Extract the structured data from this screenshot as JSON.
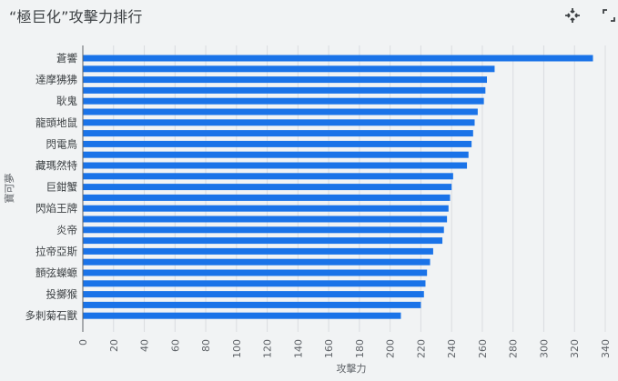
{
  "chart_data": {
    "type": "bar",
    "orientation": "horizontal",
    "title": "“極巨化”攻擊力排行",
    "xlabel": "攻擊力",
    "ylabel": "寶可夢",
    "xlim": [
      0,
      340
    ],
    "xticks": [
      0,
      20,
      40,
      60,
      80,
      100,
      120,
      140,
      160,
      180,
      200,
      220,
      240,
      260,
      280,
      300,
      320,
      340
    ],
    "grid": true,
    "bar_color": "#1a73e8",
    "labels": [
      "蒼響",
      "",
      "達摩狒狒",
      "",
      "耿鬼",
      "",
      "龍頭地鼠",
      "",
      "閃電鳥",
      "",
      "藏瑪然特",
      "",
      "巨鉗蟹",
      "",
      "閃焰王牌",
      "",
      "炎帝",
      "",
      "拉帝亞斯",
      "",
      "顫弦蠑螈",
      "",
      "投擲猴",
      "",
      "多刺菊石獸"
    ],
    "values": [
      332,
      268,
      263,
      262,
      261,
      257,
      255,
      254,
      253,
      251,
      250,
      241,
      240,
      239,
      238,
      237,
      235,
      234,
      228,
      226,
      224,
      223,
      222,
      220,
      207
    ]
  },
  "icons": {
    "collapse": "collapse-arrows-icon",
    "fullscreen": "fullscreen-icon"
  }
}
